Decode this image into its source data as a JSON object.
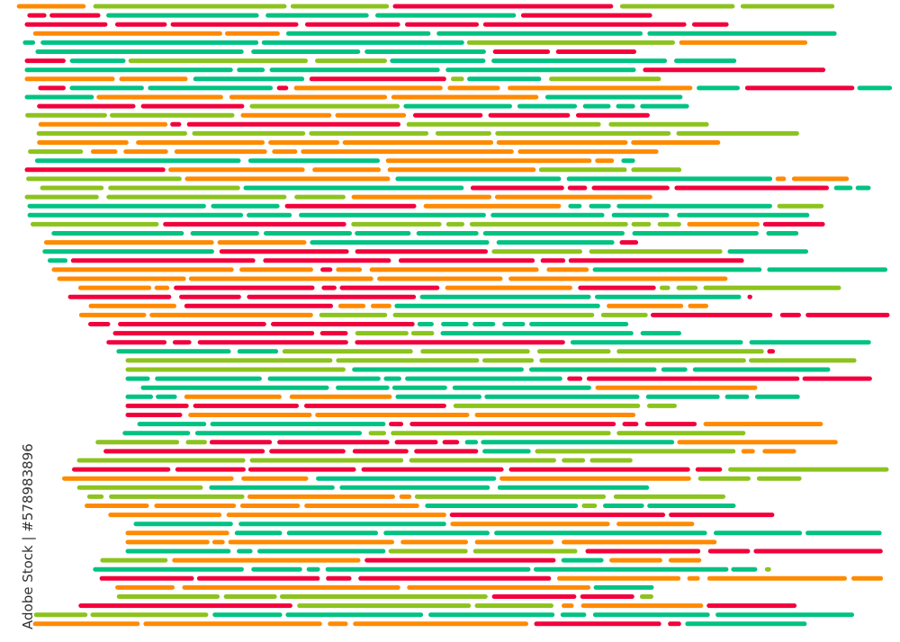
{
  "palette": {
    "lime": "#8cc31e",
    "green": "#00c282",
    "red": "#f2003c",
    "orange": "#ff8a00",
    "background": "#ffffff"
  },
  "watermark": "Adobe Stock | #578983896"
}
